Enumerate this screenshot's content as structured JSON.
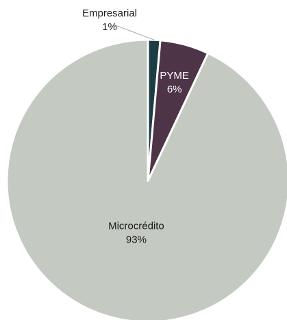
{
  "chart_data": {
    "type": "pie",
    "title": "",
    "slices": [
      {
        "name": "Empresarial",
        "percent_label": "1%",
        "value": 1.4,
        "color": "#1d3d45",
        "label_color": "#1a1a1a",
        "label_outside": true
      },
      {
        "name": "PYME",
        "percent_label": "6%",
        "value": 5.6,
        "color": "#4e3447",
        "label_color": "#ffffff",
        "label_outside": false
      },
      {
        "name": "Microcrédito",
        "percent_label": "93%",
        "value": 93.0,
        "color": "#c4cac1",
        "label_color": "#1a1a1a",
        "label_outside": false
      }
    ],
    "start_angle_deg": 0,
    "direction": "clockwise",
    "legend": "none"
  }
}
